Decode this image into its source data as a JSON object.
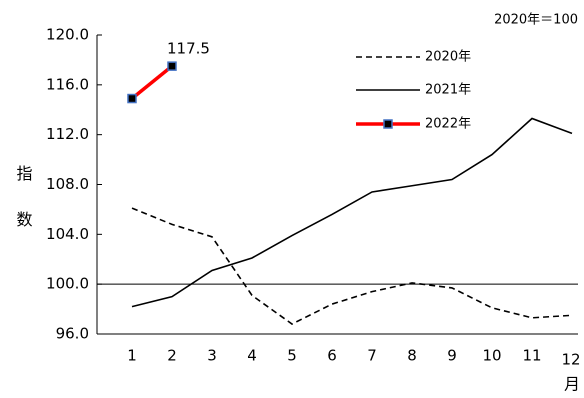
{
  "chart_data": {
    "type": "line",
    "note": "2020年＝100",
    "ylabel": "指数",
    "xlabel": "月",
    "categories": [
      "1",
      "2",
      "3",
      "4",
      "5",
      "6",
      "7",
      "8",
      "9",
      "10",
      "11",
      "12"
    ],
    "series": [
      {
        "name": "2020年",
        "color": "#000000",
        "dash": true,
        "marker": false,
        "values": [
          106.1,
          104.8,
          103.8,
          99.1,
          96.8,
          98.4,
          99.4,
          100.1,
          99.7,
          98.1,
          97.3,
          97.5
        ]
      },
      {
        "name": "2021年",
        "color": "#000000",
        "dash": false,
        "marker": false,
        "values": [
          98.2,
          99.0,
          101.1,
          102.1,
          103.9,
          105.6,
          107.4,
          107.9,
          108.4,
          110.4,
          113.3,
          112.1
        ]
      },
      {
        "name": "2022年",
        "color": "#ff0000",
        "dash": false,
        "marker": true,
        "values": [
          114.9,
          117.5,
          null,
          null,
          null,
          null,
          null,
          null,
          null,
          null,
          null,
          null
        ],
        "value_labels": [
          null,
          "117.5",
          null,
          null,
          null,
          null,
          null,
          null,
          null,
          null,
          null,
          null
        ]
      }
    ],
    "baseline": 100,
    "ylim": [
      96,
      120
    ],
    "yticks": [
      {
        "value": 96,
        "label": "96.0"
      },
      {
        "value": 100,
        "label": "100.0"
      },
      {
        "value": 104,
        "label": "104.0"
      },
      {
        "value": 108,
        "label": "108.0"
      },
      {
        "value": 112,
        "label": "112.0"
      },
      {
        "value": 116,
        "label": "116.0"
      },
      {
        "value": 120,
        "label": "120.0"
      }
    ],
    "legend": "top-right"
  }
}
